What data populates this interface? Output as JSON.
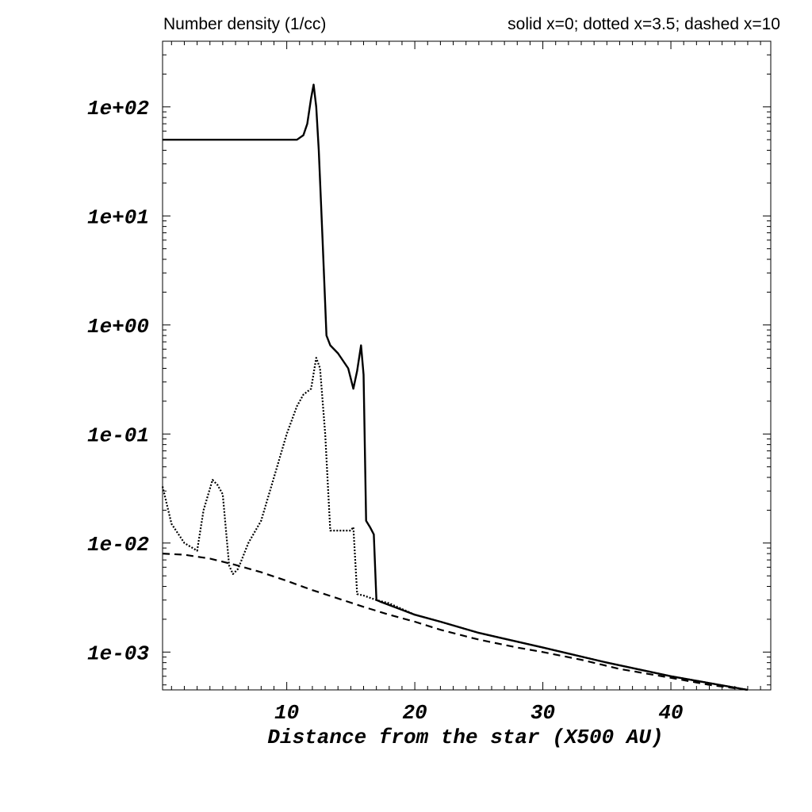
{
  "chart_data": {
    "type": "line",
    "title": "Number density (1/cc)",
    "legend_text": "solid x=0; dotted x=3.5; dashed x=10",
    "legend_placement": "top-right",
    "xlabel": "Distance from the star (X500 AU)",
    "ylabel": "",
    "xlim": [
      0.3,
      47.8
    ],
    "ylim": [
      0.00045,
      400
    ],
    "yscale": "log",
    "grid": false,
    "x_ticks": [
      10,
      20,
      30,
      40
    ],
    "x_tick_labels": [
      "10",
      "20",
      "30",
      "40"
    ],
    "y_ticks": [
      0.001,
      0.01,
      0.1,
      1,
      10,
      100
    ],
    "y_tick_labels": [
      "1e-03",
      "1e-02",
      "1e-01",
      "1e+00",
      "1e+01",
      "1e+02"
    ],
    "series": [
      {
        "style": "solid",
        "x": [
          0.3,
          2,
          4,
          6,
          8,
          10,
          10.8,
          11.3,
          11.6,
          11.9,
          12.1,
          12.3,
          12.5,
          12.8,
          13.1,
          13.4,
          14,
          14.8,
          15.2,
          15.5,
          15.8,
          16.0,
          16.2,
          16.5,
          16.8,
          17.0,
          17.3,
          18,
          20,
          22,
          25,
          30,
          35,
          40,
          43,
          46
        ],
        "y": [
          50,
          50,
          50,
          50,
          50,
          50,
          50,
          55,
          70,
          120,
          160,
          100,
          40,
          6,
          0.8,
          0.65,
          0.55,
          0.4,
          0.26,
          0.38,
          0.65,
          0.35,
          0.016,
          0.014,
          0.012,
          0.003,
          0.0029,
          0.0027,
          0.0022,
          0.0019,
          0.0015,
          0.0011,
          0.0008,
          0.0006,
          0.00052,
          0.00045
        ]
      },
      {
        "style": "dotted",
        "x": [
          0.3,
          1,
          2,
          3,
          3.5,
          4.2,
          4.6,
          5,
          5.5,
          5.8,
          6.2,
          7,
          8,
          9,
          10,
          10.8,
          11.3,
          11.9,
          12.3,
          12.6,
          13,
          13.4,
          14,
          15,
          15.2,
          15.5,
          16,
          17,
          18,
          20,
          22,
          25,
          30,
          35,
          40,
          43,
          46
        ],
        "y": [
          0.033,
          0.015,
          0.01,
          0.0085,
          0.02,
          0.038,
          0.034,
          0.028,
          0.0062,
          0.0052,
          0.0058,
          0.01,
          0.016,
          0.04,
          0.1,
          0.18,
          0.23,
          0.26,
          0.5,
          0.4,
          0.1,
          0.013,
          0.013,
          0.013,
          0.014,
          0.0034,
          0.0033,
          0.003,
          0.0028,
          0.0022,
          0.0019,
          0.0015,
          0.0011,
          0.0008,
          0.0006,
          0.00052,
          0.00045
        ]
      },
      {
        "style": "dashed",
        "x": [
          0.3,
          2,
          4,
          6,
          8,
          10,
          12,
          14,
          16,
          18,
          20,
          22,
          25,
          28,
          30,
          33,
          36,
          40,
          43,
          46
        ],
        "y": [
          0.008,
          0.0078,
          0.0072,
          0.0063,
          0.0054,
          0.0045,
          0.0037,
          0.0031,
          0.0026,
          0.0022,
          0.0019,
          0.0016,
          0.0013,
          0.0011,
          0.001,
          0.00085,
          0.0007,
          0.00058,
          0.0005,
          0.00045
        ]
      }
    ]
  }
}
